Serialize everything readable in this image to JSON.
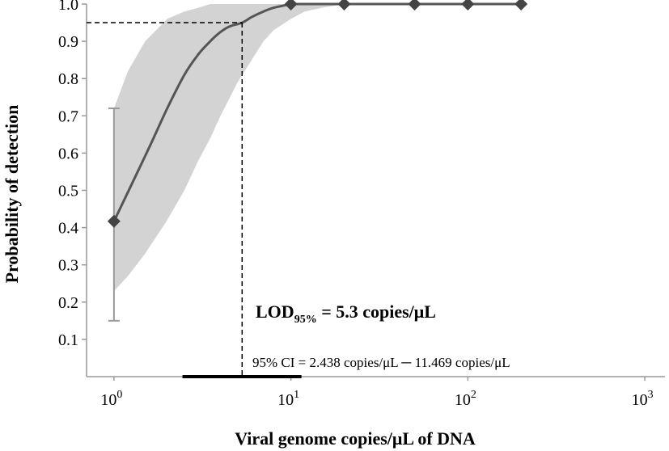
{
  "chart_data": {
    "type": "line",
    "xlabel": "Viral genome copies/μL of DNA",
    "ylabel": "Probability of detection",
    "x_scale": "log",
    "xlim": [
      0.7,
      1300
    ],
    "ylim": [
      0,
      1.0
    ],
    "x_ticks": [
      {
        "value": 1,
        "base": "10",
        "exp": "0"
      },
      {
        "value": 10,
        "base": "10",
        "exp": "1"
      },
      {
        "value": 100,
        "base": "10",
        "exp": "2"
      },
      {
        "value": 1000,
        "base": "10",
        "exp": "3"
      }
    ],
    "y_ticks": [
      {
        "value": 0.1,
        "label": "0.1"
      },
      {
        "value": 0.2,
        "label": "0.2"
      },
      {
        "value": 0.3,
        "label": "0.3"
      },
      {
        "value": 0.4,
        "label": "0.4"
      },
      {
        "value": 0.5,
        "label": "0.5"
      },
      {
        "value": 0.6,
        "label": "0.6"
      },
      {
        "value": 0.7,
        "label": "0.7"
      },
      {
        "value": 0.8,
        "label": "0.8"
      },
      {
        "value": 0.9,
        "label": "0.9"
      },
      {
        "value": 1.0,
        "label": "1.0"
      }
    ],
    "observed_points": {
      "x": [
        1,
        10,
        20,
        50,
        100,
        200
      ],
      "y": [
        0.417,
        1.0,
        1.0,
        1.0,
        1.0,
        1.0
      ],
      "marker": "diamond",
      "error_bar": {
        "x": 1,
        "low": 0.15,
        "high": 0.72
      }
    },
    "fitted_curve": {
      "x": [
        1,
        1.3,
        1.6,
        2,
        2.5,
        3,
        3.5,
        4,
        4.5,
        5.3,
        6,
        7,
        8,
        10
      ],
      "y": [
        0.417,
        0.53,
        0.62,
        0.72,
        0.81,
        0.865,
        0.9,
        0.925,
        0.94,
        0.95,
        0.965,
        0.98,
        0.99,
        1.0
      ]
    },
    "confidence_band": {
      "x": [
        1,
        1.2,
        1.5,
        2,
        2.5,
        3,
        3.5,
        4,
        5,
        6,
        7,
        8,
        10,
        12,
        15,
        20
      ],
      "upper": [
        0.72,
        0.82,
        0.9,
        0.96,
        0.98,
        0.99,
        1.0,
        1.0,
        1.0,
        1.0,
        1.0,
        1.0,
        1.0,
        1.0,
        1.0,
        1.0
      ],
      "lower": [
        0.23,
        0.27,
        0.33,
        0.42,
        0.5,
        0.58,
        0.64,
        0.7,
        0.79,
        0.85,
        0.9,
        0.93,
        0.96,
        0.98,
        0.99,
        1.0
      ]
    },
    "lod": {
      "x": 5.3,
      "y": 0.95,
      "label_main": "LOD",
      "label_sub": "95%",
      "label_rest": " = 5.3 copies/μL",
      "ci_text": "95% CI = 2.438 copies/μL ─ 11.469 copies/μL",
      "ci_low": 2.438,
      "ci_high": 11.469
    },
    "colors": {
      "curve": "#555555",
      "band": "#d3d3d3",
      "marker": "#444444",
      "error_bar": "#999999",
      "axis": "#999999"
    }
  }
}
